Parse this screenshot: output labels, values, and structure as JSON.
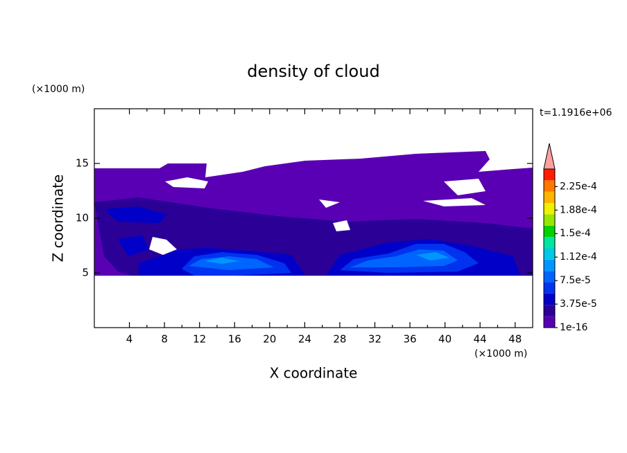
{
  "chart_data": {
    "type": "contour",
    "title": "density of cloud",
    "x_label": "X coordinate",
    "y_label": "Z coordinate",
    "x_unit": "(×1000 m)",
    "y_unit": "(×1000 m)",
    "annotation": "t=1.1916e+06",
    "xlim": [
      0,
      50
    ],
    "xticks": [
      4,
      8,
      12,
      16,
      20,
      24,
      28,
      32,
      36,
      40,
      44,
      48
    ],
    "ylim": [
      0,
      20
    ],
    "yticks": [
      5,
      10,
      15
    ],
    "colorbar": {
      "clim": [
        1e-16,
        0.000253
      ],
      "ticks": [
        {
          "value": 1e-16,
          "label": "1e-16"
        },
        {
          "value": 3.75e-05,
          "label": "3.75e-5"
        },
        {
          "value": 7.5e-05,
          "label": "7.5e-5"
        },
        {
          "value": 0.0001125,
          "label": "1.12e-4"
        },
        {
          "value": 0.00015,
          "label": "1.5e-4"
        },
        {
          "value": 0.0001875,
          "label": "1.88e-4"
        },
        {
          "value": 0.000225,
          "label": "2.25e-4"
        }
      ],
      "colors": [
        "#5a00b4",
        "#2a0096",
        "#0000c8",
        "#0032f0",
        "#0064ff",
        "#0096ff",
        "#00c8e6",
        "#00e6a0",
        "#00d200",
        "#96e600",
        "#f0f000",
        "#ffb400",
        "#ff7800",
        "#ff1e00"
      ],
      "extend_color": "#ffa0a0"
    }
  }
}
